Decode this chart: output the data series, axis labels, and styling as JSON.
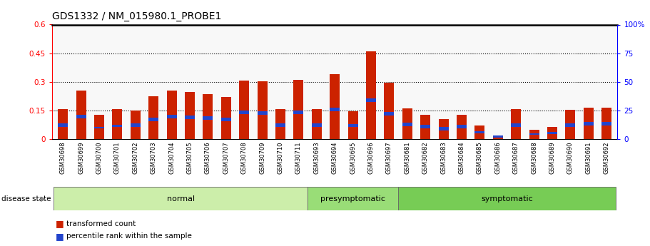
{
  "title": "GDS1332 / NM_015980.1_PROBE1",
  "samples": [
    "GSM30698",
    "GSM30699",
    "GSM30700",
    "GSM30701",
    "GSM30702",
    "GSM30703",
    "GSM30704",
    "GSM30705",
    "GSM30706",
    "GSM30707",
    "GSM30708",
    "GSM30709",
    "GSM30710",
    "GSM30711",
    "GSM30693",
    "GSM30694",
    "GSM30695",
    "GSM30696",
    "GSM30697",
    "GSM30681",
    "GSM30682",
    "GSM30683",
    "GSM30684",
    "GSM30685",
    "GSM30686",
    "GSM30687",
    "GSM30688",
    "GSM30689",
    "GSM30690",
    "GSM30691",
    "GSM30692"
  ],
  "red_values": [
    0.155,
    0.255,
    0.128,
    0.155,
    0.148,
    0.225,
    0.255,
    0.245,
    0.235,
    0.22,
    0.308,
    0.303,
    0.155,
    0.31,
    0.155,
    0.34,
    0.145,
    0.46,
    0.295,
    0.16,
    0.128,
    0.105,
    0.128,
    0.07,
    0.02,
    0.155,
    0.05,
    0.065,
    0.152,
    0.165,
    0.165
  ],
  "blue_heights": [
    0.018,
    0.018,
    0.009,
    0.009,
    0.018,
    0.018,
    0.018,
    0.018,
    0.018,
    0.018,
    0.018,
    0.018,
    0.018,
    0.018,
    0.018,
    0.018,
    0.018,
    0.018,
    0.018,
    0.018,
    0.018,
    0.018,
    0.018,
    0.009,
    0.009,
    0.018,
    0.009,
    0.009,
    0.018,
    0.018,
    0.018
  ],
  "blue_bottoms": [
    0.065,
    0.11,
    0.055,
    0.065,
    0.065,
    0.095,
    0.11,
    0.105,
    0.1,
    0.095,
    0.13,
    0.128,
    0.065,
    0.13,
    0.065,
    0.145,
    0.062,
    0.195,
    0.125,
    0.068,
    0.055,
    0.045,
    0.055,
    0.03,
    0.008,
    0.065,
    0.021,
    0.027,
    0.065,
    0.07,
    0.07
  ],
  "groups": [
    {
      "label": "normal",
      "start": 0,
      "end": 14,
      "color": "#cceeaa"
    },
    {
      "label": "presymptomatic",
      "start": 14,
      "end": 19,
      "color": "#99dd77"
    },
    {
      "label": "symptomatic",
      "start": 19,
      "end": 31,
      "color": "#77cc55"
    }
  ],
  "ylim_left": [
    0,
    0.6
  ],
  "ylim_right": [
    0,
    100
  ],
  "yticks_left": [
    0,
    0.15,
    0.3,
    0.45,
    0.6
  ],
  "yticks_right": [
    0,
    25,
    50,
    75,
    100
  ],
  "grid_values": [
    0.15,
    0.3,
    0.45
  ],
  "bar_color_red": "#cc2200",
  "bar_color_blue": "#2244cc",
  "bar_width": 0.55,
  "disease_state_label": "disease state",
  "legend_items": [
    "transformed count",
    "percentile rank within the sample"
  ],
  "xticklabel_bg": "#cccccc",
  "plot_bg": "#f8f8f8"
}
